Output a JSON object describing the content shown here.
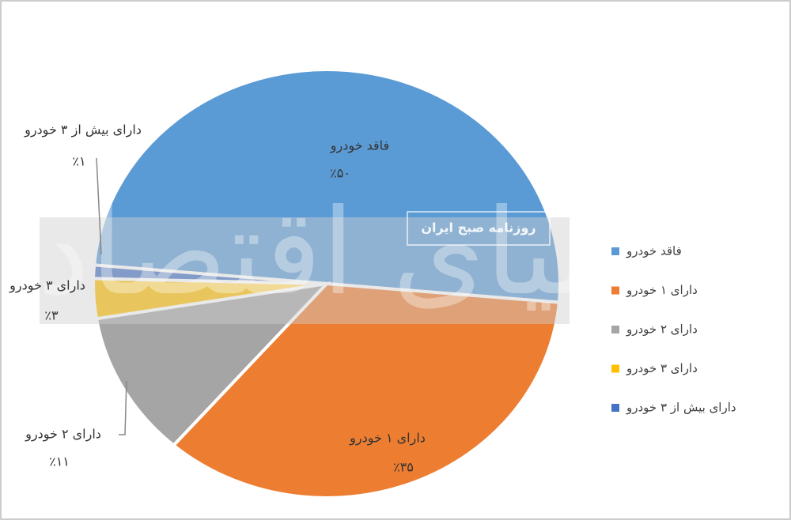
{
  "chart_data": {
    "type": "pie",
    "categories": [
      "فاقد خودرو",
      "دارای ۱ خودرو",
      "دارای ۲ خودرو",
      "دارای ۳ خودرو",
      "دارای بیش از ۳ خودرو"
    ],
    "values": [
      50,
      35,
      11,
      3,
      1
    ],
    "value_labels": [
      "٪۵۰",
      "٪۳۵",
      "٪۱۱",
      "٪۳",
      "٪۱"
    ],
    "colors": [
      "#5b9bd5",
      "#ed7d31",
      "#a5a5a5",
      "#ffc000",
      "#4472c4"
    ],
    "legend": "right"
  },
  "watermarks": [
    "روزنامه صبح ایران",
    "دنیای اقتصاد"
  ]
}
